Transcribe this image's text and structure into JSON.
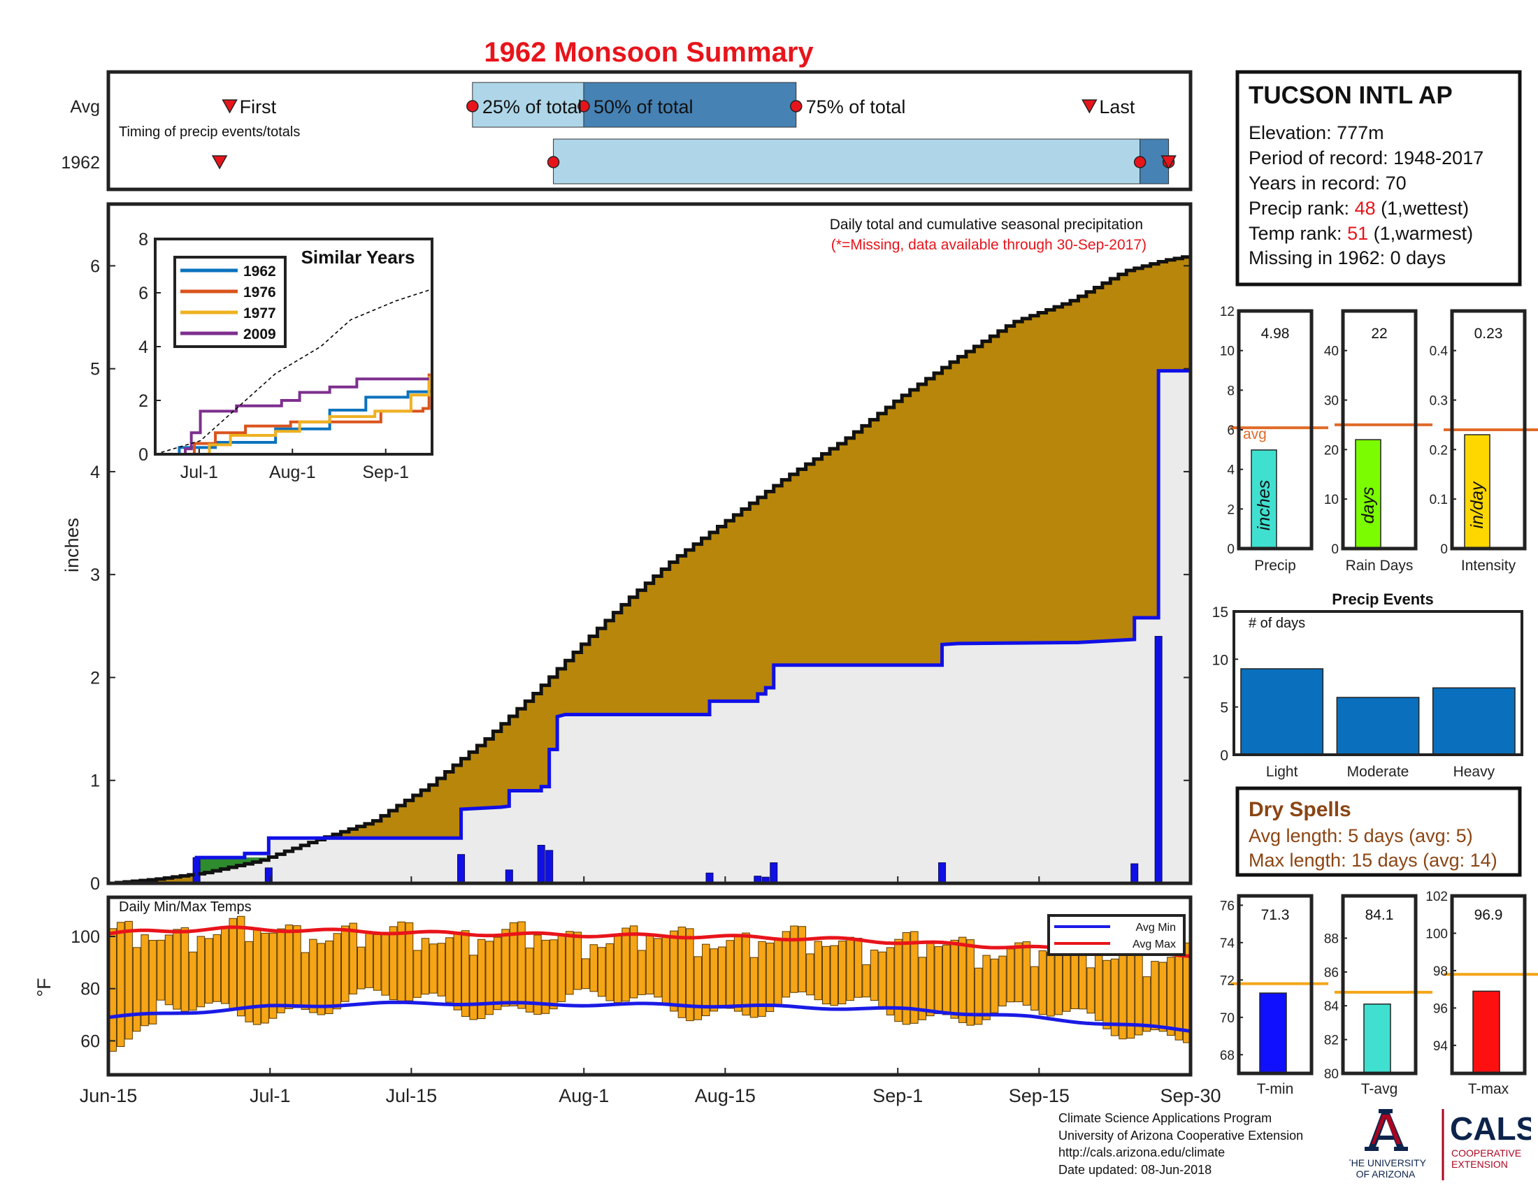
{
  "title": "1962 Monsoon Summary",
  "colors": {
    "title": "#e8141b",
    "frame": "#222222",
    "light_blue": "#aed6e8",
    "mid_blue": "#4682b4",
    "marker_red": "#e8141b",
    "precip_fill": "#b8860b",
    "precip_green": "#2e8b2e",
    "precip_gray": "#ebebeb",
    "cumulative_blue": "#1010e6",
    "daily_bar": "#1010e6",
    "temp_bar": "#f5a516",
    "avg_min": "#1a1ae6",
    "avg_max": "#e8141b",
    "avg_line": "#e06b2a",
    "avg_line_temp": "#f5a516",
    "precip_bar": "#40e0d0",
    "raindays_bar": "#7cfc00",
    "intensity_bar": "#ffd700",
    "events_bar": "#0a6fbd",
    "tmin_bar": "#1010ff",
    "tavg_bar": "#40e0d0",
    "tmax_bar": "#ff1010",
    "dry_spells": "#8b4513",
    "rank_red": "#e8141b",
    "ua_blue": "#0c234b",
    "ua_red": "#ab0520"
  },
  "timing": {
    "rows": [
      "Avg",
      "1962"
    ],
    "note": "Timing of precip events/totals",
    "first_label": "First",
    "last_label": "Last",
    "pct_labels": [
      "25% of total",
      "50% of total",
      "75% of total"
    ],
    "avg": {
      "first": "2024-06-27",
      "p25": "2024-07-21",
      "p50": "2024-08-01",
      "p75": "2024-08-22",
      "last": "2024-09-20"
    },
    "y1962": {
      "first": "2024-06-26",
      "p25": "2024-07-29",
      "p50": "2024-09-25",
      "p75": "2024-09-27",
      "last": "2024-09-27"
    }
  },
  "station": {
    "name": "TUCSON INTL AP",
    "elevation": "Elevation: 777m",
    "period": "Period of record: 1948-2017",
    "years": "Years in record: 70",
    "precip_rank_prefix": "Precip rank: ",
    "precip_rank_value": "48",
    "precip_rank_suffix": " (1,wettest)",
    "temp_rank_prefix": "Temp rank: ",
    "temp_rank_value": "51",
    "temp_rank_suffix": " (1,warmest)",
    "missing": "Missing in 1962: 0 days"
  },
  "precip_note": "Daily total and cumulative seasonal precipitation",
  "missing_note": "(*=Missing, data available through 30-Sep-2017)",
  "similar_years_title": "Similar Years",
  "temps_title": "Daily Min/Max Temps",
  "legend_avg_min": "Avg Min",
  "legend_avg_max": "Avg Max",
  "x_date_ticks": [
    "Jun-15",
    "Jul-1",
    "Jul-15",
    "Aug-1",
    "Aug-15",
    "Sep-1",
    "Sep-15",
    "Sep-30"
  ],
  "dry_spells": {
    "title": "Dry Spells",
    "avg": "Avg length: 5 days (avg: 5)",
    "max": "Max length: 15 days (avg: 14)"
  },
  "credits": [
    "Climate Science Applications Program",
    "University of Arizona Cooperative Extension",
    "http://cals.arizona.edu/climate",
    " Date updated: 08-Jun-2018"
  ],
  "logo": {
    "ua_line1": "THE UNIVERSITY",
    "ua_line2": "OF ARIZONA",
    "cals": "CALS",
    "coop1": "COOPERATIVE",
    "coop2": "EXTENSION"
  },
  "chart_data": [
    {
      "id": "timing",
      "type": "bar",
      "note": "Timing of precip events/totals",
      "series": [
        {
          "name": "Avg",
          "first": "Jun-27",
          "p25": "Jul-21",
          "p50": "Aug-1",
          "p75": "Aug-22",
          "last": "Sep-20"
        },
        {
          "name": "1962",
          "first": "Jun-26",
          "p25": "Jul-29",
          "p50": "Sep-25",
          "p75": "Sep-27",
          "last": "Sep-27"
        }
      ]
    },
    {
      "id": "main_precip",
      "type": "area",
      "ylabel": "inches",
      "ylim": [
        0,
        6.6
      ],
      "yticks": [
        0,
        1,
        2,
        3,
        4,
        5,
        6
      ],
      "xlim": [
        "2024-06-15",
        "2024-09-30"
      ],
      "avg_cumulative": [
        [
          0,
          0
        ],
        [
          5,
          0.04
        ],
        [
          10,
          0.1
        ],
        [
          16,
          0.22
        ],
        [
          22,
          0.42
        ],
        [
          28,
          0.6
        ],
        [
          34,
          0.95
        ],
        [
          40,
          1.4
        ],
        [
          45,
          1.83
        ],
        [
          50,
          2.3
        ],
        [
          55,
          2.75
        ],
        [
          60,
          3.15
        ],
        [
          66,
          3.55
        ],
        [
          72,
          3.95
        ],
        [
          78,
          4.3
        ],
        [
          84,
          4.72
        ],
        [
          90,
          5.1
        ],
        [
          96,
          5.45
        ],
        [
          102,
          5.65
        ],
        [
          108,
          5.95
        ],
        [
          112,
          6.05
        ],
        [
          115,
          6.1
        ]
      ],
      "cumulative_1962": [
        [
          0,
          0
        ],
        [
          11,
          0
        ],
        [
          11,
          0.25
        ],
        [
          17,
          0.25
        ],
        [
          17,
          0.29
        ],
        [
          20,
          0.29
        ],
        [
          20,
          0.44
        ],
        [
          44,
          0.44
        ],
        [
          44,
          0.72
        ],
        [
          49,
          0.74
        ],
        [
          50,
          0.75
        ],
        [
          50,
          0.9
        ],
        [
          54,
          0.9
        ],
        [
          54,
          0.94
        ],
        [
          55,
          0.94
        ],
        [
          55,
          1.3
        ],
        [
          56,
          1.3
        ],
        [
          56,
          1.62
        ],
        [
          57,
          1.64
        ],
        [
          75,
          1.64
        ],
        [
          75,
          1.77
        ],
        [
          81,
          1.77
        ],
        [
          81,
          1.84
        ],
        [
          82,
          1.84
        ],
        [
          82,
          1.9
        ],
        [
          83,
          1.9
        ],
        [
          83,
          2.12
        ],
        [
          104,
          2.12
        ],
        [
          104,
          2.32
        ],
        [
          106,
          2.33
        ],
        [
          121,
          2.34
        ],
        [
          128,
          2.37
        ],
        [
          128,
          2.58
        ],
        [
          131,
          2.58
        ],
        [
          131,
          4.98
        ],
        [
          135,
          4.98
        ]
      ],
      "daily": [
        [
          11,
          0.25
        ],
        [
          20,
          0.15
        ],
        [
          44,
          0.28
        ],
        [
          50,
          0.13
        ],
        [
          54,
          0.37
        ],
        [
          55,
          0.32
        ],
        [
          75,
          0.1
        ],
        [
          81,
          0.07
        ],
        [
          82,
          0.06
        ],
        [
          83,
          0.2
        ],
        [
          104,
          0.2
        ],
        [
          128,
          0.19
        ],
        [
          131,
          2.4
        ]
      ]
    },
    {
      "id": "similar_years",
      "type": "line",
      "title": "Similar Years",
      "ylim": [
        0,
        8
      ],
      "yticks": [
        0,
        2,
        4,
        6,
        8
      ],
      "xticks": [
        "Jul-1",
        "Aug-1",
        "Sep-1"
      ],
      "series": [
        {
          "name": "1962",
          "color": "#0b72bd",
          "points": [
            [
              15,
              0
            ],
            [
              23,
              0.25
            ],
            [
              35,
              0.44
            ],
            [
              55,
              0.94
            ],
            [
              73,
              1.64
            ],
            [
              85,
              2.12
            ],
            [
              99,
              2.32
            ],
            [
              106,
              2.34
            ],
            [
              107,
              5
            ]
          ]
        },
        {
          "name": "1976",
          "color": "#d9541c",
          "points": [
            [
              15,
              0
            ],
            [
              28,
              0.4
            ],
            [
              35,
              0.8
            ],
            [
              45,
              1.05
            ],
            [
              60,
              1.2
            ],
            [
              75,
              1.2
            ],
            [
              90,
              1.6
            ],
            [
              104,
              1.7
            ],
            [
              106,
              3.0
            ]
          ]
        },
        {
          "name": "1977",
          "color": "#eeb120",
          "points": [
            [
              15,
              0
            ],
            [
              33,
              0.35
            ],
            [
              40,
              0.7
            ],
            [
              55,
              0.85
            ],
            [
              63,
              1.2
            ],
            [
              73,
              1.4
            ],
            [
              88,
              1.6
            ],
            [
              100,
              2.2
            ],
            [
              106,
              2.9
            ]
          ]
        },
        {
          "name": "2009",
          "color": "#7e2f8e",
          "points": [
            [
              15,
              0
            ],
            [
              25,
              0.2
            ],
            [
              27,
              0.8
            ],
            [
              30,
              1.6
            ],
            [
              42,
              1.8
            ],
            [
              50,
              1.8
            ],
            [
              57,
              2.0
            ],
            [
              63,
              2.3
            ],
            [
              73,
              2.5
            ],
            [
              82,
              2.8
            ],
            [
              106,
              2.8
            ]
          ]
        },
        {
          "name": "avg",
          "color": "#000000",
          "dashed": true,
          "points": [
            [
              15,
              0
            ],
            [
              30,
              0.5
            ],
            [
              40,
              1.5
            ],
            [
              55,
              3.0
            ],
            [
              70,
              4.0
            ],
            [
              80,
              5.0
            ],
            [
              95,
              5.7
            ],
            [
              106,
              6.1
            ]
          ]
        }
      ]
    },
    {
      "id": "temps",
      "type": "bar",
      "title": "Daily Min/Max Temps",
      "ylabel": "°F",
      "ylim": [
        47,
        115
      ],
      "yticks": [
        60,
        80,
        100
      ],
      "avg_max": [
        [
          0,
          101
        ],
        [
          5,
          102
        ],
        [
          15,
          103
        ],
        [
          30,
          102
        ],
        [
          45,
          101
        ],
        [
          60,
          100.5
        ],
        [
          75,
          100
        ],
        [
          90,
          99
        ],
        [
          105,
          97
        ],
        [
          120,
          95
        ],
        [
          135,
          93
        ]
      ],
      "avg_min": [
        [
          0,
          69
        ],
        [
          10,
          71
        ],
        [
          20,
          73
        ],
        [
          30,
          74
        ],
        [
          40,
          74.5
        ],
        [
          55,
          74
        ],
        [
          70,
          73.8
        ],
        [
          85,
          73
        ],
        [
          100,
          72
        ],
        [
          115,
          69
        ],
        [
          135,
          64
        ]
      ]
    },
    {
      "id": "precip_summary",
      "type": "bar",
      "categories": [
        "Precip",
        "Rain Days",
        "Intensity"
      ],
      "values": [
        4.98,
        22,
        0.23
      ],
      "averages": [
        6.1,
        25,
        0.24
      ],
      "units": [
        "inches",
        "days",
        "in/day"
      ],
      "ylims": [
        [
          0,
          12
        ],
        [
          0,
          48
        ],
        [
          0,
          0.48
        ]
      ],
      "yticks": [
        [
          0,
          2,
          4,
          6,
          8,
          10,
          12
        ],
        [
          0,
          10,
          20,
          30,
          40
        ],
        [
          0,
          0.1,
          0.2,
          0.3,
          0.4
        ]
      ]
    },
    {
      "id": "precip_events",
      "type": "bar",
      "title": "Precip Events",
      "ylabel": "# of days",
      "categories": [
        "Light",
        "Moderate",
        "Heavy"
      ],
      "values": [
        9,
        6,
        7
      ],
      "ylim": [
        0,
        15
      ],
      "yticks": [
        0,
        5,
        10,
        15
      ]
    },
    {
      "id": "temp_summary",
      "type": "bar",
      "categories": [
        "T-min",
        "T-avg",
        "T-max"
      ],
      "values": [
        71.3,
        84.1,
        96.9
      ],
      "averages": [
        71.8,
        84.8,
        97.8
      ],
      "ylims": [
        [
          67,
          76.5
        ],
        [
          80,
          90.5
        ],
        [
          92.5,
          102
        ]
      ],
      "yticks": [
        [
          68,
          70,
          72,
          74,
          76
        ],
        [
          80,
          82,
          84,
          86,
          88
        ],
        [
          94,
          96,
          98,
          100,
          102
        ]
      ]
    }
  ]
}
